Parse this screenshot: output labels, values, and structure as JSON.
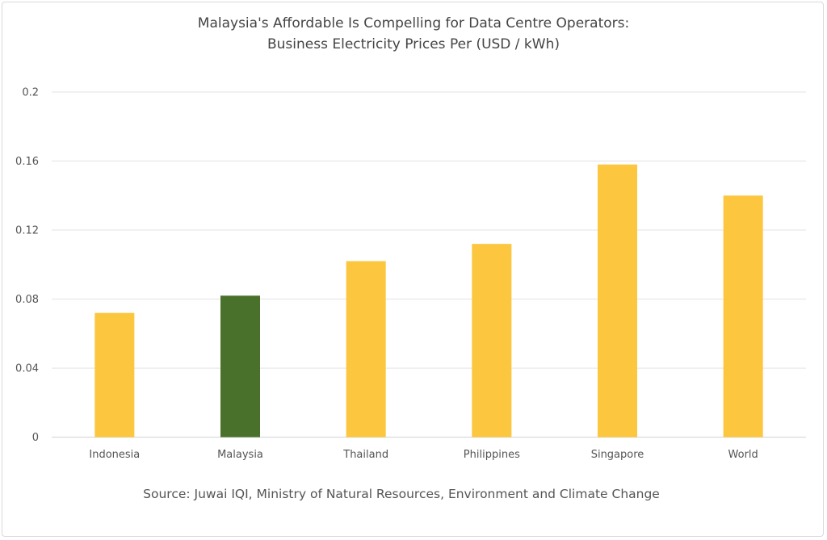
{
  "chart_data": {
    "type": "bar",
    "title": "Malaysia's Affordable Is Compelling for Data Centre Operators:",
    "subtitle": "Business Electricity Prices Per (USD / kWh)",
    "categories": [
      "Indonesia",
      "Malaysia",
      "Thailand",
      "Philippines",
      "Singapore",
      "World"
    ],
    "values": [
      0.072,
      0.082,
      0.102,
      0.112,
      0.158,
      0.14
    ],
    "colors": [
      "#FCC63F",
      "#4A712C",
      "#FCC63F",
      "#FCC63F",
      "#FCC63F",
      "#FCC63F"
    ],
    "xlabel": "",
    "ylabel": "",
    "ylim": [
      0,
      0.2
    ],
    "yticks": [
      "0",
      "0.04",
      "0.08",
      "0.12",
      "0.16",
      "0.2"
    ],
    "grid": true,
    "source": "Source: Juwai IQI, Ministry of Natural Resources, Environment and Climate Change"
  }
}
